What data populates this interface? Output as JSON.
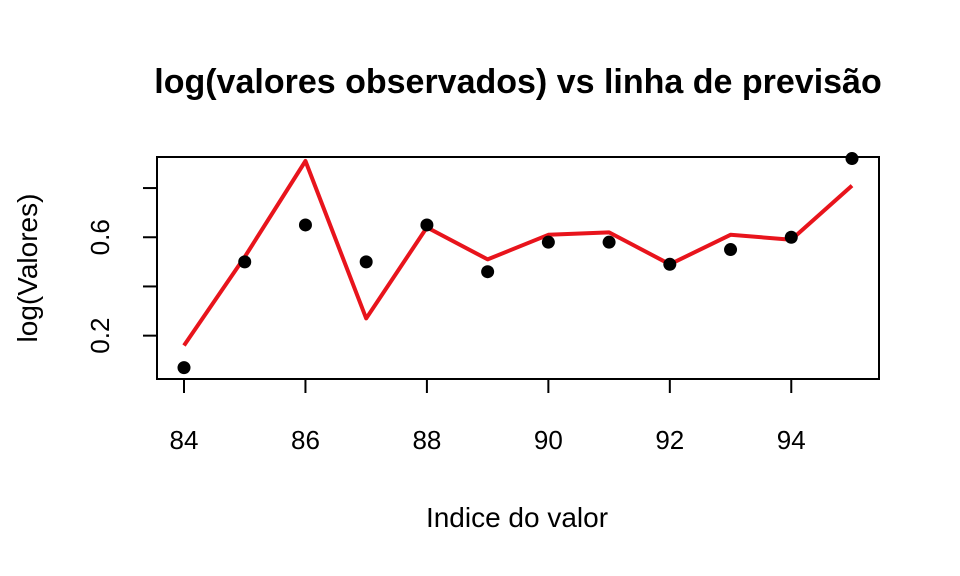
{
  "chart_data": {
    "type": "scatter",
    "title": "log(valores observados) vs linha de previsão",
    "xlabel": "Indice do valor",
    "ylabel": "log(Valores)",
    "xlim": [
      84,
      95
    ],
    "ylim": [
      0.04,
      0.91
    ],
    "x_ticks": [
      84,
      86,
      88,
      90,
      92,
      94
    ],
    "x_tick_labels": [
      "84",
      "86",
      "88",
      "90",
      "92",
      "94"
    ],
    "y_ticks": [
      0.2,
      0.4,
      0.6,
      0.8
    ],
    "y_tick_labels": [
      "0.2",
      "",
      "0.6",
      ""
    ],
    "grid": false,
    "series": [
      {
        "kind": "points",
        "color": "#000000",
        "x": [
          84,
          85,
          86,
          87,
          88,
          89,
          90,
          91,
          92,
          93,
          94,
          95
        ],
        "y": [
          0.07,
          0.5,
          0.65,
          0.5,
          0.65,
          0.46,
          0.58,
          0.58,
          0.49,
          0.55,
          0.6,
          0.92
        ]
      },
      {
        "kind": "line",
        "color": "#e8141c",
        "x": [
          84,
          85,
          86,
          87,
          88,
          89,
          90,
          91,
          92,
          93,
          94,
          95
        ],
        "y": [
          0.16,
          0.52,
          0.91,
          0.27,
          0.64,
          0.51,
          0.61,
          0.62,
          0.49,
          0.61,
          0.59,
          0.81
        ]
      }
    ]
  }
}
